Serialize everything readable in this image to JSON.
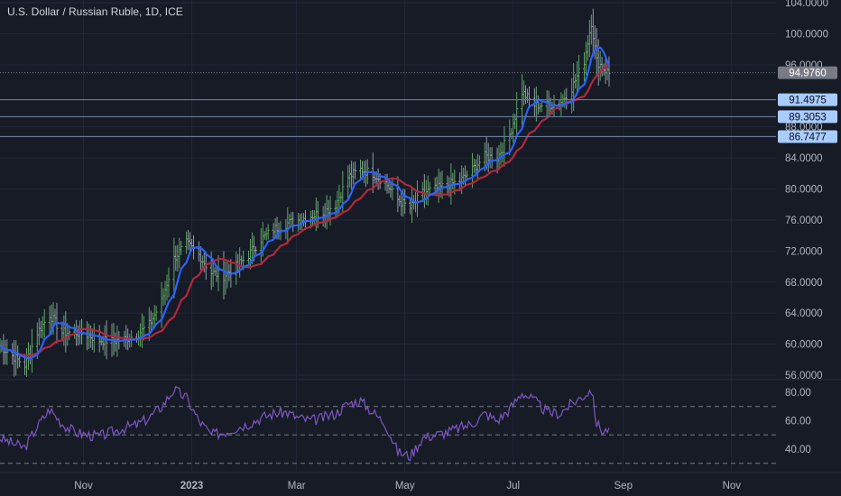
{
  "symbol_title": "U.S. Dollar / Russian Ruble, 1D, ICE",
  "colors": {
    "background": "#161b26",
    "grid": "#232838",
    "bar_up": "#5fa463",
    "bar_down": "#8f9ba6",
    "ma_fast": "#2962ff",
    "ma_slow": "#b2283d",
    "rsi_line": "#7e57c2",
    "hline": "#6a7a9b",
    "label_bg": "#a8ccff",
    "label_text": "#0b0e14",
    "price_label_bg": "#787b86"
  },
  "chart_data": [
    {
      "type": "ohlc",
      "title": "U.S. Dollar / Russian Ruble, 1D, ICE",
      "x_tick_labels": [
        "Nov",
        "2023",
        "Mar",
        "May",
        "Jul",
        "Sep",
        "Nov"
      ],
      "y_tick_labels": [
        "104.0000",
        "100.0000",
        "96.0000",
        "88.0000",
        "84.0000",
        "80.0000",
        "76.0000",
        "72.0000",
        "68.0000",
        "64.0000",
        "60.0000",
        "56.0000"
      ],
      "ylim": [
        56,
        104
      ],
      "last_price_label": "94.9760",
      "horizontal_levels": [
        {
          "value": 91.4975,
          "label": "91.4975"
        },
        {
          "value": 89.3053,
          "label": "89.3053"
        },
        {
          "value": 86.7477,
          "label": "86.7477"
        }
      ],
      "closes_note": "approximate closes read from the plot, one point per ~week",
      "close_series": {
        "dates": [
          "2022-09-15",
          "2022-09-22",
          "2022-09-29",
          "2022-10-06",
          "2022-10-13",
          "2022-10-20",
          "2022-10-27",
          "2022-11-03",
          "2022-11-10",
          "2022-11-17",
          "2022-11-24",
          "2022-12-01",
          "2022-12-08",
          "2022-12-15",
          "2022-12-22",
          "2022-12-29",
          "2023-01-05",
          "2023-01-12",
          "2023-01-19",
          "2023-01-26",
          "2023-02-02",
          "2023-02-09",
          "2023-02-16",
          "2023-02-23",
          "2023-03-02",
          "2023-03-09",
          "2023-03-16",
          "2023-03-23",
          "2023-03-30",
          "2023-04-06",
          "2023-04-13",
          "2023-04-20",
          "2023-04-27",
          "2023-05-04",
          "2023-05-11",
          "2023-05-18",
          "2023-05-25",
          "2023-06-01",
          "2023-06-08",
          "2023-06-15",
          "2023-06-22",
          "2023-06-29",
          "2023-07-06",
          "2023-07-13",
          "2023-07-20",
          "2023-07-27",
          "2023-08-03",
          "2023-08-10",
          "2023-08-14",
          "2023-08-17",
          "2023-08-21",
          "2023-08-24"
        ],
        "values": [
          59.8,
          58.5,
          57.3,
          61.5,
          63.8,
          61.5,
          61.5,
          61.2,
          60.5,
          60.4,
          60.6,
          61.2,
          62.5,
          65.5,
          71.0,
          73.0,
          71.5,
          69.2,
          68.8,
          70.0,
          71.5,
          73.5,
          74.8,
          75.5,
          76.0,
          76.5,
          77.0,
          78.0,
          81.5,
          82.5,
          82.0,
          80.8,
          78.6,
          77.5,
          79.5,
          80.0,
          80.5,
          81.0,
          82.5,
          84.2,
          84.0,
          87.0,
          92.5,
          90.8,
          90.8,
          91.0,
          93.0,
          96.5,
          101.5,
          96.5,
          95.5,
          94.9
        ]
      },
      "series": [
        {
          "name": "",
          "kind": "moving-average-fast",
          "values_ref": "close_series"
        },
        {
          "name": "",
          "kind": "moving-average-slow",
          "values_ref": "close_series"
        }
      ]
    },
    {
      "type": "line",
      "indicator": "RSI",
      "y_tick_labels": [
        "80.00",
        "60.00",
        "40.00"
      ],
      "ylim": [
        30,
        85
      ],
      "bands": [
        70,
        50,
        30
      ],
      "values": [
        48,
        44,
        41,
        56,
        68,
        58,
        52,
        50,
        49,
        52,
        55,
        57,
        62,
        70,
        82,
        76,
        60,
        50,
        52,
        55,
        58,
        62,
        65,
        66,
        62,
        60,
        62,
        65,
        72,
        74,
        66,
        58,
        38,
        35,
        48,
        50,
        52,
        55,
        58,
        65,
        60,
        68,
        80,
        74,
        66,
        65,
        72,
        78,
        82,
        58,
        52,
        55
      ]
    }
  ]
}
